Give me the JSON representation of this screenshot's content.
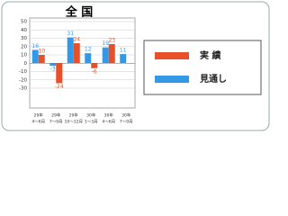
{
  "chart_data": {
    "type": "bar",
    "title": "全 国",
    "categories": [
      [
        "29年",
        "4〜6月"
      ],
      [
        "29年",
        "7〜9月"
      ],
      [
        "29年",
        "10〜12月"
      ],
      [
        "30年",
        "1〜3月"
      ],
      [
        "30年",
        "4〜6月"
      ],
      [
        "30年",
        "7〜9月"
      ]
    ],
    "series": [
      {
        "name": "見通し",
        "color": "#3399e6",
        "values": [
          16,
          -3,
          31,
          12,
          19,
          11
        ]
      },
      {
        "name": "実 績",
        "color": "#e8502a",
        "values": [
          10,
          -24,
          24,
          -6,
          23,
          null
        ]
      }
    ],
    "ylim": [
      -30,
      50
    ],
    "yticks": [
      -30,
      -20,
      -10,
      0,
      10,
      20,
      30,
      40,
      50
    ],
    "grid": true,
    "legend": "right"
  }
}
